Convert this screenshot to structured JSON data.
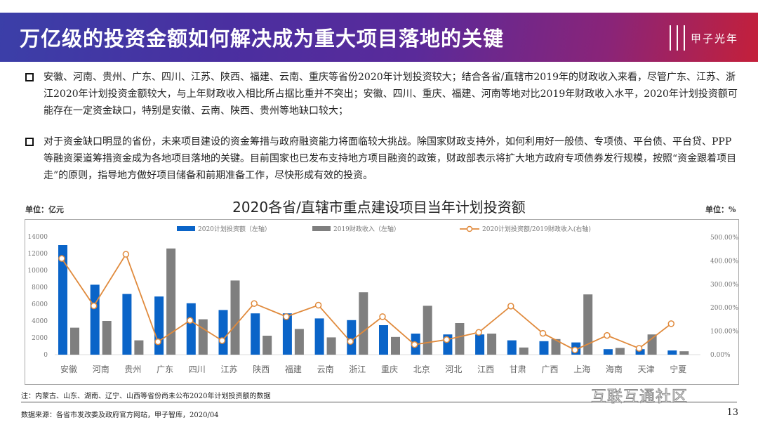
{
  "header": {
    "title": "万亿级的投资金额如何解决成为重大项目落地的关键",
    "logo_text": "甲子光年"
  },
  "bullets": [
    "安徽、河南、贵州、广东、四川、江苏、陕西、福建、云南、重庆等省份2020年计划投资较大；结合各省/直辖市2019年的财政收入来看，尽管广东、江苏、浙江2020年计划投资金额较大，与上年财政收入相比所占据比重并不突出；安徽、四川、重庆、福建、河南等地对比2019年财政收入水平，2020年计划投资额可能存在一定资金缺口，特别是安徽、云南、陕西、贵州等地缺口较大；",
    "对于资金缺口明显的省份，未来项目建设的资金筹措与政府融资能力将面临较大挑战。除国家财政支持外，如何利用好一般债、专项债、平台债、平台贷、PPP等融资渠道筹措资金成为各地项目落地的关键。目前国家也已发布支持地方项目融资的政策，财政部表示将扩大地方政府专项债券发行规模，按照“资金跟着项目走”的原则，指导地方做好项目储备和前期准备工作，尽快形成有效的投资。"
  ],
  "chart_data": {
    "type": "bar+line",
    "title": "2020各省/直辖市重点建设项目当年计划投资额",
    "left_unit": "单位：亿元",
    "right_unit": "单位：%",
    "categories": [
      "安徽",
      "河南",
      "贵州",
      "广东",
      "四川",
      "江苏",
      "陕西",
      "福建",
      "云南",
      "浙江",
      "重庆",
      "北京",
      "河北",
      "江西",
      "甘肃",
      "广西",
      "上海",
      "海南",
      "天津",
      "宁夏"
    ],
    "series": [
      {
        "name": "2020计划投资额（左轴）",
        "type": "bar",
        "axis": "left",
        "color": "#0a64c8",
        "values": [
          13000,
          8300,
          7200,
          6900,
          6100,
          5300,
          4900,
          4900,
          4300,
          4100,
          3500,
          2500,
          2400,
          2400,
          1700,
          1600,
          1450,
          650,
          650,
          500
        ]
      },
      {
        "name": "2019财政收入（左轴）",
        "type": "bar",
        "axis": "left",
        "color": "#7f7f7f",
        "values": [
          3200,
          4000,
          1700,
          12600,
          4200,
          8800,
          2250,
          3050,
          2050,
          7400,
          2100,
          5800,
          3750,
          2500,
          850,
          1850,
          7150,
          800,
          2400,
          400
        ]
      },
      {
        "name": "2020计划投资额/2019财政收入(右轴)",
        "type": "line",
        "axis": "right",
        "color": "#e08a3c",
        "values": [
          410,
          208,
          428,
          55,
          146,
          60,
          218,
          162,
          211,
          56,
          162,
          43,
          64,
          95,
          207,
          91,
          20,
          82,
          27,
          132
        ]
      }
    ],
    "left_ticks": [
      "0",
      "2000",
      "4000",
      "6000",
      "8000",
      "10000",
      "12000",
      "14000"
    ],
    "right_ticks": [
      "0.00%",
      "100.00%",
      "200.00%",
      "300.00%",
      "400.00%",
      "500.00%"
    ],
    "ylim_left": [
      0,
      14000
    ],
    "ylim_right": [
      0,
      500
    ],
    "legend": "top"
  },
  "footer": {
    "note": "注：内蒙古、山东、湖南、辽宁、山西等省份尚未公布2020年计划投资额的数据",
    "source": "数据来源：各省市发改委及政府官方网站，甲子智库，2020/04",
    "page": "13",
    "watermark": "互联互通社区"
  }
}
